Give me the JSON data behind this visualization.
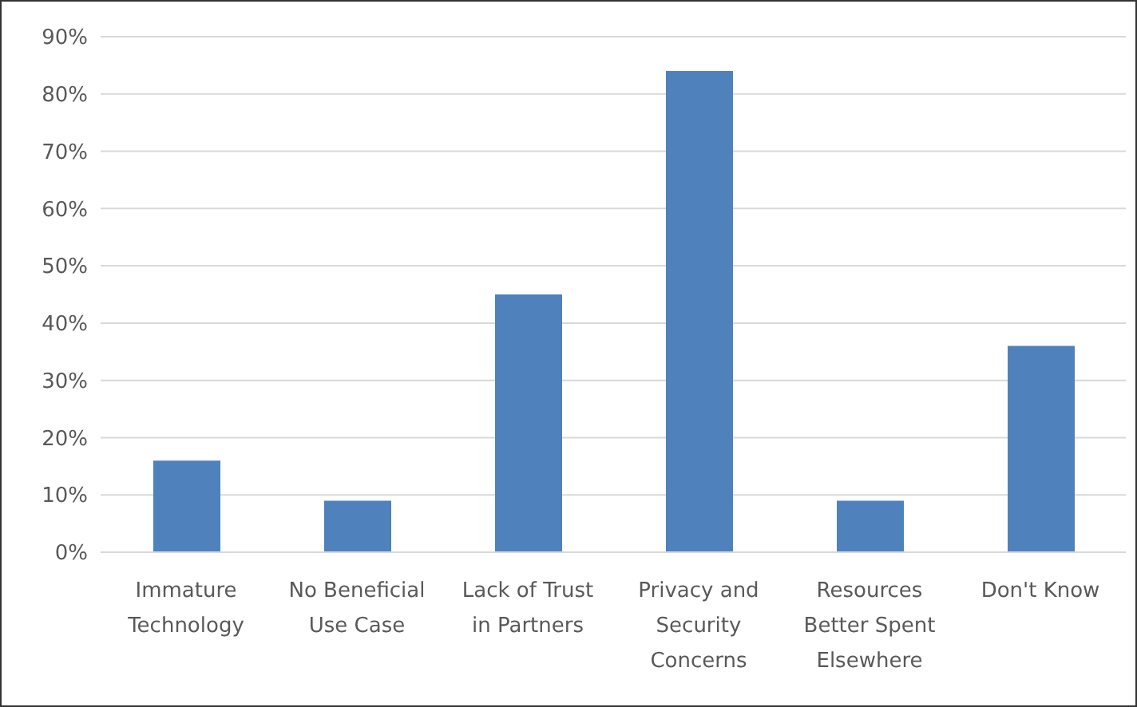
{
  "chart_data": {
    "type": "bar",
    "categories": [
      "Immature Technology",
      "No Beneficial Use Case",
      "Lack of Trust in Partners",
      "Privacy and Security Concerns",
      "Resources Better Spent Elsewhere",
      "Don't Know"
    ],
    "values": [
      16,
      9,
      45,
      84,
      9,
      36
    ],
    "color": "#4f81bd",
    "ylim": [
      0,
      90
    ],
    "yticks": [
      {
        "value": 0,
        "label": "0%"
      },
      {
        "value": 10,
        "label": "10%"
      },
      {
        "value": 20,
        "label": "20%"
      },
      {
        "value": 30,
        "label": "30%"
      },
      {
        "value": 40,
        "label": "40%"
      },
      {
        "value": 50,
        "label": "50%"
      },
      {
        "value": 60,
        "label": "60%"
      },
      {
        "value": 70,
        "label": "70%"
      },
      {
        "value": 80,
        "label": "80%"
      },
      {
        "value": 90,
        "label": "90%"
      }
    ],
    "grid": "y"
  }
}
